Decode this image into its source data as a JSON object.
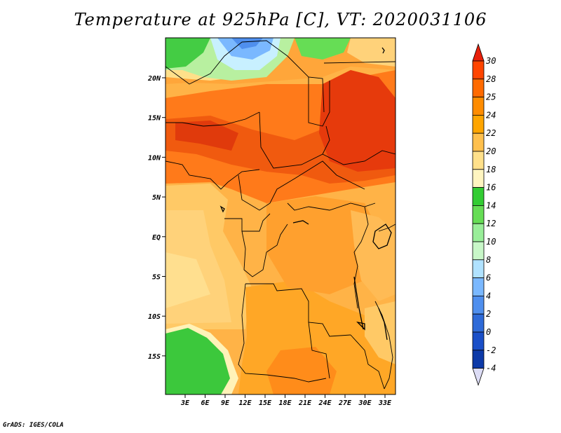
{
  "title": "Temperature at 925hPa [C], VT: 2020031106",
  "credit": "GrADS: IGES/COLA",
  "lon_labels": [
    "3E",
    "6E",
    "9E",
    "12E",
    "15E",
    "18E",
    "21E",
    "24E",
    "27E",
    "30E",
    "33E"
  ],
  "lat_labels": [
    "20N",
    "15N",
    "10N",
    "5N",
    "EQ",
    "5S",
    "10S",
    "15S"
  ],
  "colorbar": {
    "labels": [
      "30",
      "28",
      "25",
      "24",
      "22",
      "20",
      "18",
      "16",
      "14",
      "12",
      "10",
      "8",
      "6",
      "4",
      "2",
      "0",
      "-2",
      "-4"
    ],
    "colors": [
      "#ff4500",
      "#ff6a00",
      "#ff8c00",
      "#ffa500",
      "#ffc04d",
      "#ffe08a",
      "#fff5c0",
      "#33cc33",
      "#66dd55",
      "#99ee99",
      "#c8f7c8",
      "#b0e2ff",
      "#7ab8ff",
      "#4f8fee",
      "#2e6ad8",
      "#1a4fc8",
      "#0d3aa8",
      "#0a1f7a"
    ],
    "top_color": "#e8200a",
    "bottom_color": "#dcdcf5"
  }
}
